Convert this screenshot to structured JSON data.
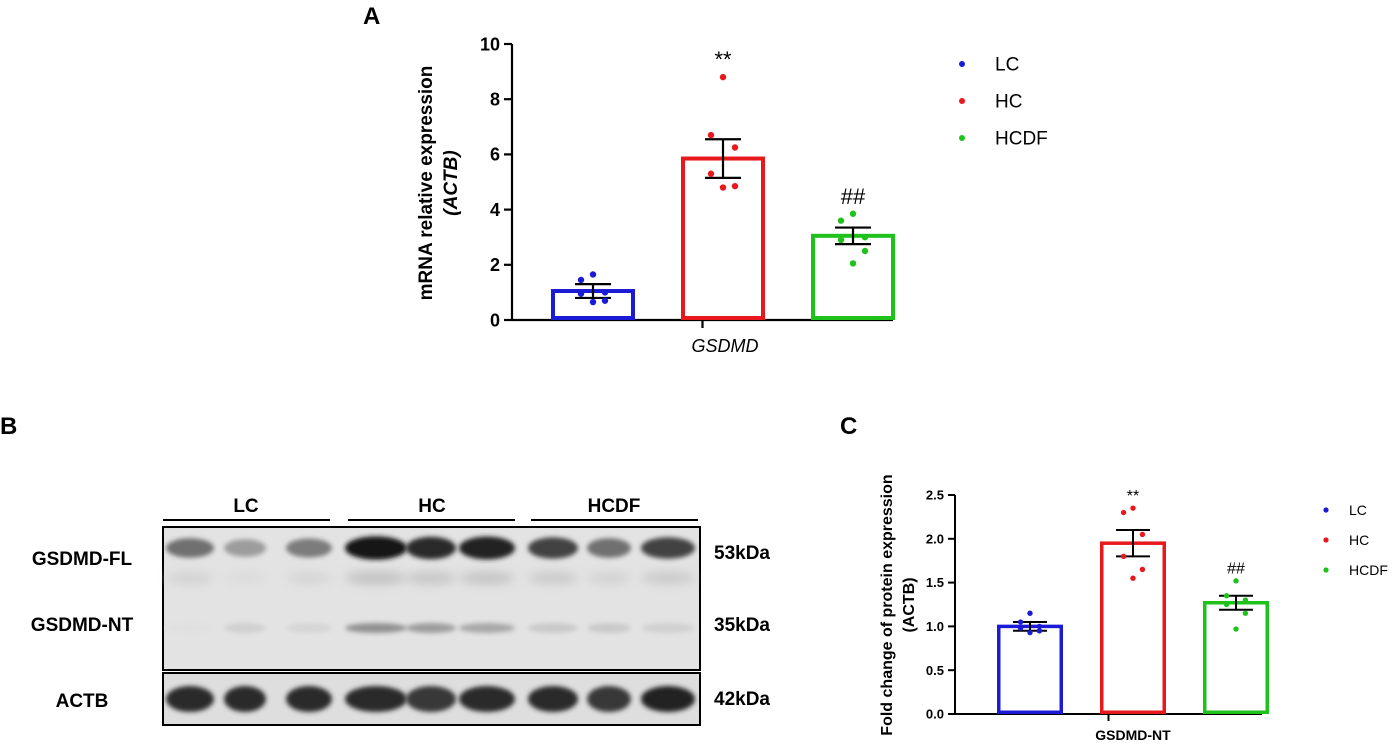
{
  "panels": {
    "A": "A",
    "B": "B",
    "C": "C"
  },
  "colors": {
    "LC": "#1b1bd6",
    "HC": "#e8191d",
    "HCDF": "#1ec21b",
    "axis": "#000000"
  },
  "blot": {
    "groups": [
      "LC",
      "HC",
      "HCDF"
    ],
    "row_labels": [
      "GSDMD-FL",
      "GSDMD-NT",
      "ACTB"
    ],
    "sizes": [
      "53kDa",
      "35kDa",
      "42kDa"
    ],
    "fl_intensity": [
      0.55,
      0.35,
      0.5,
      0.95,
      0.85,
      0.9,
      0.75,
      0.55,
      0.75
    ],
    "nt_intensity": [
      0.05,
      0.12,
      0.1,
      0.4,
      0.35,
      0.3,
      0.15,
      0.15,
      0.12
    ],
    "actb_intensity": [
      0.85,
      0.85,
      0.85,
      0.85,
      0.8,
      0.85,
      0.85,
      0.8,
      0.9
    ]
  },
  "chart_data": [
    {
      "type": "bar",
      "panel": "A",
      "categories": [
        "LC",
        "HC",
        "HCDF"
      ],
      "xlabel": "GSDMD",
      "ylabel_line1": "mRNA relative expression",
      "ylabel_line2": "(ACTB)",
      "ylim": [
        0,
        10
      ],
      "yticks": [
        0,
        2,
        4,
        6,
        8,
        10
      ],
      "ytick_labels": [
        "0",
        "2",
        "4",
        "6",
        "8",
        "10"
      ],
      "values": [
        1.05,
        5.85,
        3.05
      ],
      "errors": [
        0.25,
        0.7,
        0.3
      ],
      "points": [
        [
          1.65,
          1.45,
          1.0,
          0.95,
          0.7,
          0.65
        ],
        [
          8.8,
          6.7,
          6.25,
          5.3,
          4.85,
          4.8
        ],
        [
          3.85,
          3.6,
          3.0,
          2.9,
          2.5,
          2.05
        ]
      ],
      "annotations": [
        "",
        "**",
        "##"
      ],
      "legend": [
        "LC",
        "HC",
        "HCDF"
      ],
      "legend_position": "right"
    },
    {
      "type": "bar",
      "panel": "C",
      "categories": [
        "LC",
        "HC",
        "HCDF"
      ],
      "xlabel": "GSDMD-NT",
      "ylabel_line1": "Fold change of protein expression",
      "ylabel_line2": "(ACTB)",
      "ylim": [
        0,
        2.5
      ],
      "yticks": [
        0,
        0.5,
        1.0,
        1.5,
        2.0,
        2.5
      ],
      "ytick_labels": [
        "0.0",
        "0.5",
        "1.0",
        "1.5",
        "2.0",
        "2.5"
      ],
      "values": [
        1.0,
        1.95,
        1.27
      ],
      "errors": [
        0.05,
        0.15,
        0.08
      ],
      "points": [
        [
          1.15,
          1.05,
          1.0,
          0.98,
          0.95,
          0.93
        ],
        [
          2.35,
          2.3,
          2.05,
          1.8,
          1.65,
          1.55
        ],
        [
          1.52,
          1.35,
          1.3,
          1.25,
          1.15,
          0.97
        ]
      ],
      "annotations": [
        "",
        "**",
        "##"
      ],
      "legend": [
        "LC",
        "HC",
        "HCDF"
      ],
      "legend_position": "right"
    }
  ]
}
